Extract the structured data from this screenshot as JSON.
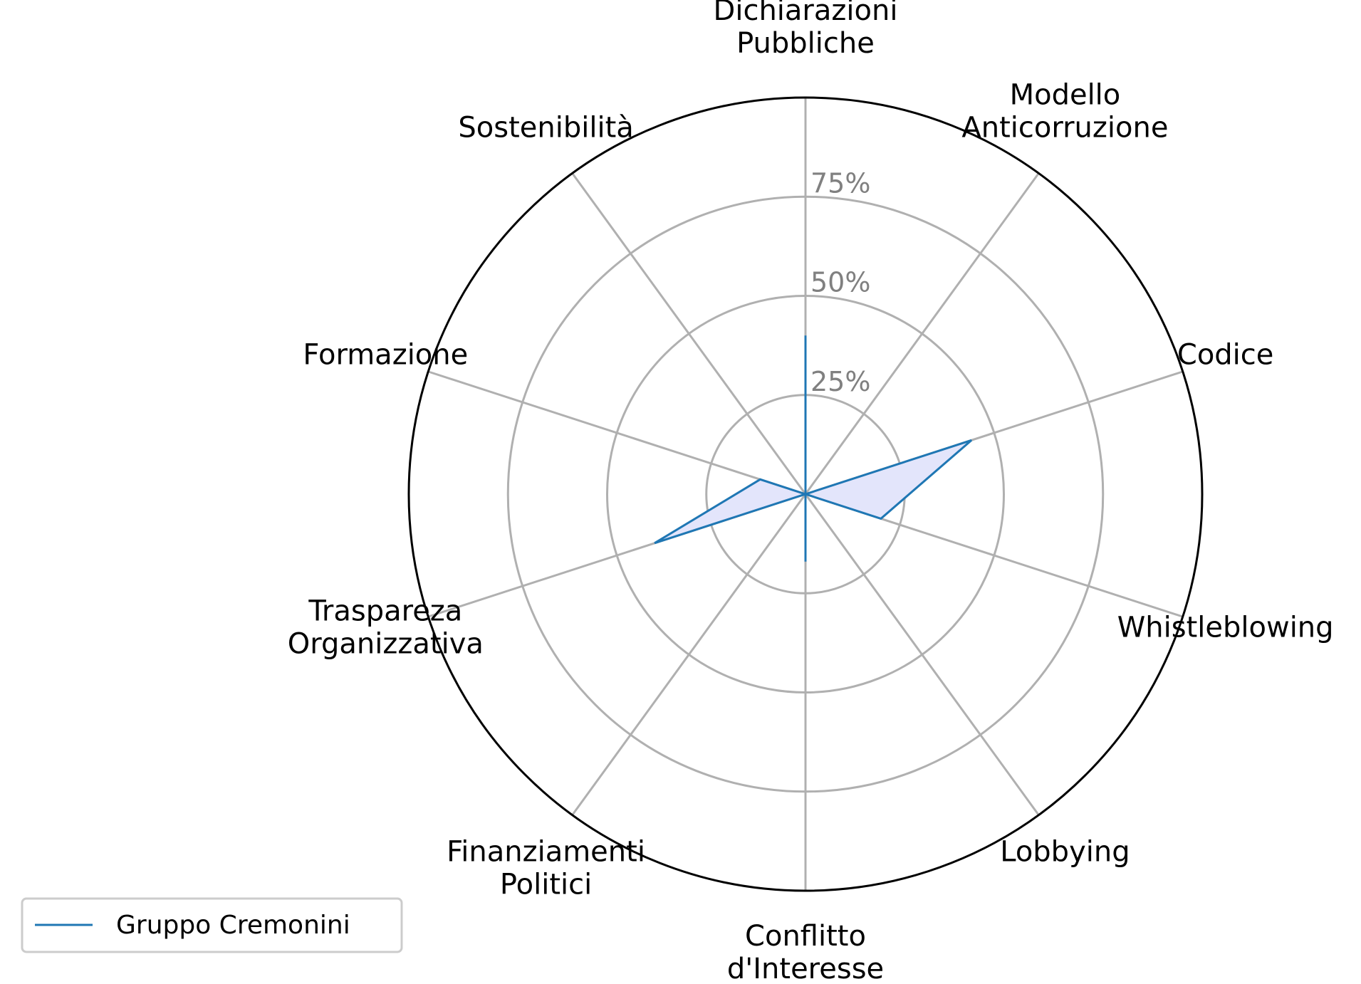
{
  "chart_data": {
    "type": "radar",
    "axes": [
      [
        "Dichiarazioni",
        "Pubbliche"
      ],
      [
        "Modello",
        "Anticorruzione"
      ],
      [
        "Codice"
      ],
      [
        "Whistleblowing"
      ],
      [
        "Lobbying"
      ],
      [
        "Conflitto",
        "d'Interesse"
      ],
      [
        "Finanziamenti",
        "Politici"
      ],
      [
        "Traspareza",
        "Organizzativa"
      ],
      [
        "Formazione"
      ],
      [
        "Sostenibilità"
      ]
    ],
    "series": [
      {
        "name": "Gruppo Cremonini",
        "values": [
          40,
          0,
          44,
          20,
          0,
          17,
          0,
          40,
          12,
          0
        ]
      }
    ],
    "rlim": [
      0,
      100
    ],
    "rticks": [
      25,
      50,
      75
    ],
    "rtick_labels": [
      "25%",
      "50%",
      "75%"
    ],
    "grid": true,
    "legend": "bottom-left",
    "colors": {
      "line": "#1f77b4",
      "fill": "#e3e5fb",
      "grid": "#b0b0b0",
      "spine": "#000000",
      "tick": "#808080"
    }
  }
}
